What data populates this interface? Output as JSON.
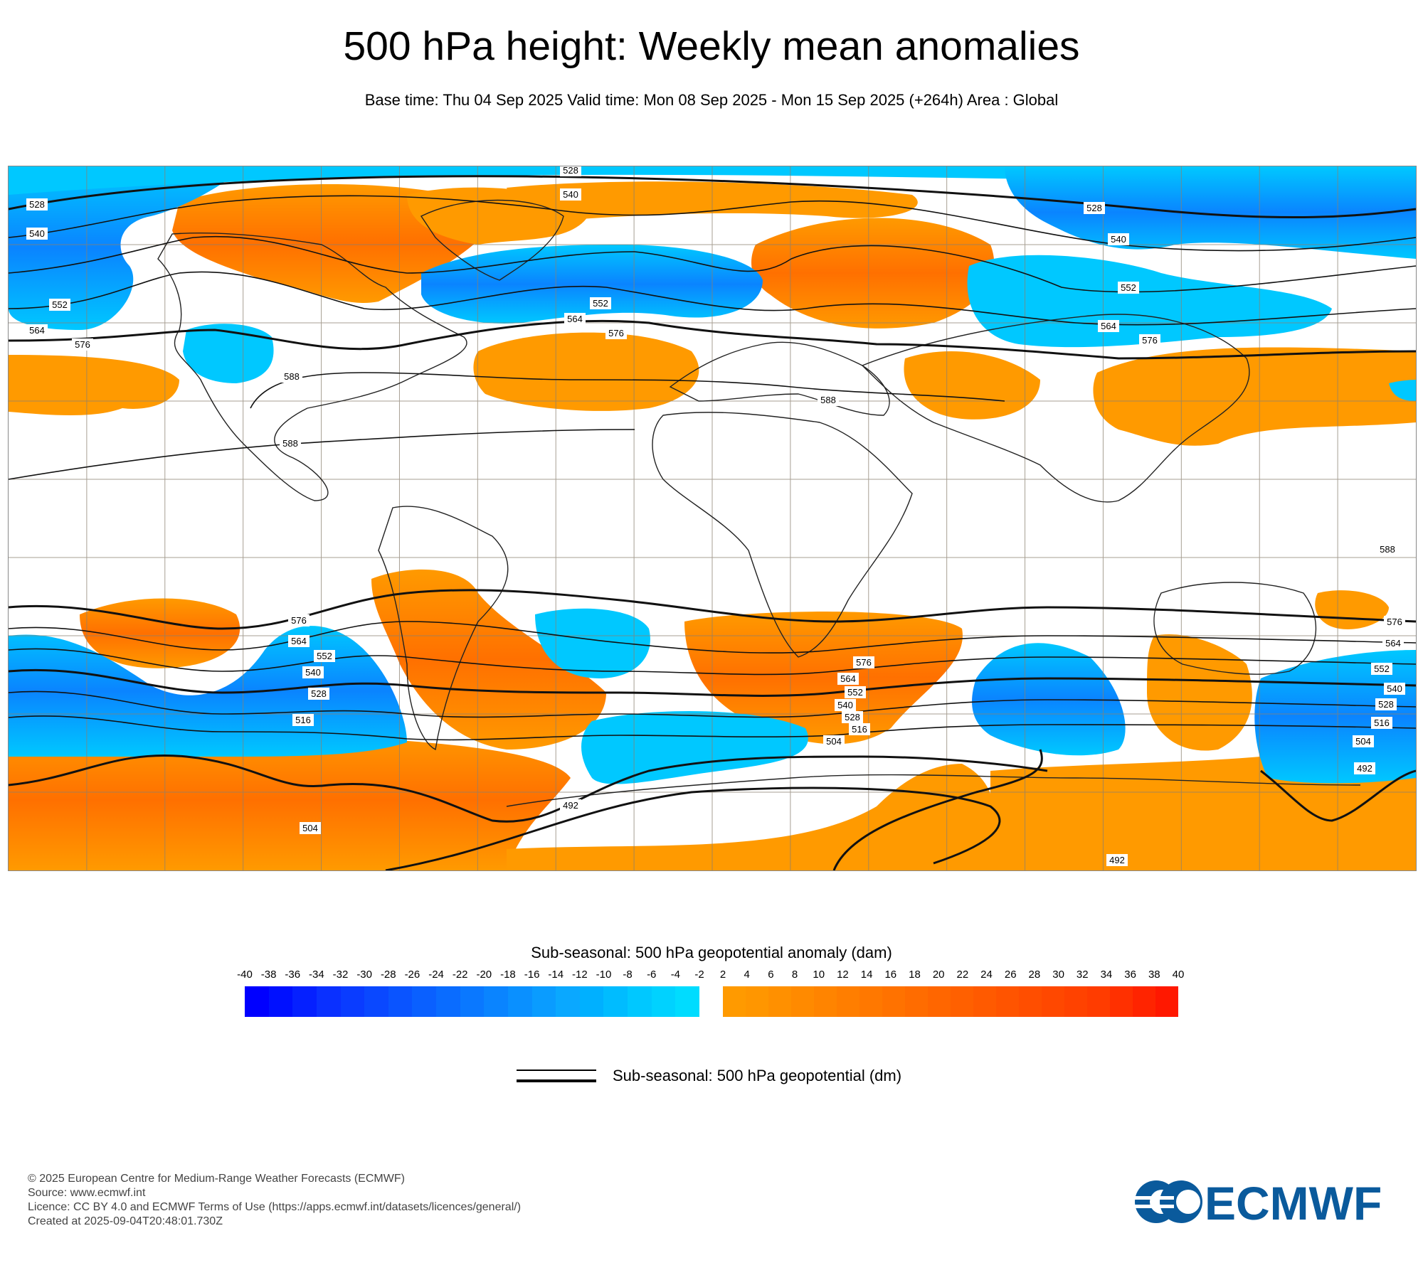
{
  "title": "500 hPa height: Weekly mean anomalies",
  "subtitle": "Base time: Thu 04 Sep 2025 Valid time: Mon 08 Sep 2025 - Mon 15 Sep 2025 (+264h) Area : Global",
  "map": {
    "area": "Global",
    "contour_labels": [
      {
        "text": "528"
      },
      {
        "text": "540"
      },
      {
        "text": "528"
      },
      {
        "text": "540"
      },
      {
        "text": "552"
      },
      {
        "text": "564"
      },
      {
        "text": "576"
      },
      {
        "text": "588"
      },
      {
        "text": "588"
      },
      {
        "text": "552"
      },
      {
        "text": "564"
      },
      {
        "text": "576"
      },
      {
        "text": "528"
      },
      {
        "text": "540"
      },
      {
        "text": "552"
      },
      {
        "text": "564"
      },
      {
        "text": "576"
      },
      {
        "text": "588"
      },
      {
        "text": "588"
      },
      {
        "text": "576"
      },
      {
        "text": "564"
      },
      {
        "text": "552"
      },
      {
        "text": "540"
      },
      {
        "text": "528"
      },
      {
        "text": "516"
      },
      {
        "text": "504"
      },
      {
        "text": "576"
      },
      {
        "text": "564"
      },
      {
        "text": "552"
      },
      {
        "text": "540"
      },
      {
        "text": "528"
      },
      {
        "text": "516"
      },
      {
        "text": "504"
      },
      {
        "text": "492"
      },
      {
        "text": "492"
      },
      {
        "text": "576"
      },
      {
        "text": "564"
      },
      {
        "text": "552"
      },
      {
        "text": "540"
      },
      {
        "text": "528"
      },
      {
        "text": "516"
      },
      {
        "text": "504"
      },
      {
        "text": "492"
      }
    ]
  },
  "colorbar": {
    "title": "Sub-seasonal: 500 hPa geopotential anomaly (dam)",
    "ticks": [
      "-40",
      "-38",
      "-36",
      "-34",
      "-32",
      "-30",
      "-28",
      "-26",
      "-24",
      "-22",
      "-20",
      "-18",
      "-16",
      "-14",
      "-12",
      "-10",
      "-8",
      "-6",
      "-4",
      "-2",
      "2",
      "4",
      "6",
      "8",
      "10",
      "12",
      "14",
      "16",
      "18",
      "20",
      "22",
      "24",
      "26",
      "28",
      "30",
      "32",
      "34",
      "36",
      "38",
      "40"
    ],
    "negative_colors": [
      "#0000ff",
      "#0010ff",
      "#0520ff",
      "#0a30ff",
      "#0a3cff",
      "#0a48ff",
      "#0a54ff",
      "#0a60ff",
      "#0a6cff",
      "#0a78ff",
      "#0a84ff",
      "#0a90ff",
      "#0a9cff",
      "#0aa8ff",
      "#00b0ff",
      "#00bcff",
      "#00c8ff",
      "#00d2ff",
      "#00dcff"
    ],
    "positive_colors": [
      "#ff9a00",
      "#ff9600",
      "#ff9000",
      "#ff8a00",
      "#ff8400",
      "#ff7e00",
      "#ff7800",
      "#ff7200",
      "#ff6c00",
      "#ff6600",
      "#ff6000",
      "#ff5a00",
      "#ff5400",
      "#ff4e00",
      "#ff4800",
      "#ff4200",
      "#ff3c00",
      "#ff3000",
      "#ff2400",
      "#ff1800"
    ],
    "anomaly_positive_color": "#ff9a00",
    "anomaly_negative_color": "#00c8ff"
  },
  "legend": {
    "line_label": "Sub-seasonal: 500 hPa geopotential (dm)"
  },
  "footer": {
    "copyright": "© 2025 European Centre for Medium-Range Weather Forecasts (ECMWF)",
    "source": "Source: www.ecmwf.int",
    "licence": "Licence: CC BY 4.0 and ECMWF Terms of Use (https://apps.ecmwf.int/datasets/licences/general/)",
    "created": "Created at 2025-09-04T20:48:01.730Z"
  },
  "logo": {
    "text": "ECMWF",
    "color": "#0a5a9c"
  }
}
